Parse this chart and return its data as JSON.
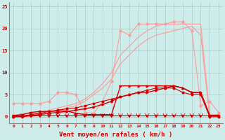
{
  "x": [
    0,
    1,
    2,
    3,
    4,
    5,
    6,
    7,
    8,
    9,
    10,
    11,
    12,
    13,
    14,
    15,
    16,
    17,
    18,
    19,
    20,
    21,
    22,
    23
  ],
  "line_pink_jagged": [
    3.0,
    3.0,
    3.0,
    3.0,
    3.5,
    5.5,
    5.5,
    5.0,
    1.0,
    0.8,
    3.5,
    8.0,
    19.5,
    18.5,
    21.0,
    21.0,
    21.0,
    21.0,
    21.5,
    21.5,
    19.5,
    2.5,
    3.5,
    1.0
  ],
  "line_pink_upper": [
    0.0,
    0.0,
    0.5,
    1.0,
    1.5,
    2.0,
    2.5,
    3.0,
    4.0,
    5.5,
    7.5,
    10.0,
    14.0,
    16.0,
    18.0,
    19.5,
    20.5,
    21.0,
    21.0,
    21.0,
    21.0,
    21.0,
    0.5,
    0.5
  ],
  "line_pink_lower": [
    0.0,
    0.0,
    0.0,
    0.5,
    1.0,
    1.5,
    2.0,
    2.5,
    3.5,
    5.0,
    6.5,
    8.5,
    12.0,
    14.0,
    16.0,
    17.5,
    18.5,
    19.0,
    19.5,
    20.0,
    20.5,
    18.5,
    0.0,
    0.0
  ],
  "line_dark_flat": [
    0.3,
    0.3,
    0.3,
    0.3,
    0.3,
    0.3,
    0.3,
    0.3,
    0.3,
    0.3,
    0.3,
    0.3,
    0.3,
    0.3,
    0.3,
    0.3,
    0.3,
    0.3,
    0.3,
    0.3,
    0.3,
    0.3,
    0.3,
    0.3
  ],
  "line_dark_step": [
    0.3,
    0.5,
    1.0,
    1.2,
    1.2,
    1.3,
    1.3,
    0.8,
    0.5,
    0.5,
    0.5,
    0.5,
    7.0,
    7.0,
    7.0,
    7.0,
    7.0,
    7.0,
    7.0,
    6.5,
    5.5,
    5.5,
    0.3,
    0.3
  ],
  "line_dark_ramp": [
    0.0,
    0.0,
    0.3,
    0.5,
    0.8,
    1.0,
    1.2,
    1.5,
    1.8,
    2.2,
    2.8,
    3.5,
    4.5,
    5.0,
    5.5,
    5.5,
    6.0,
    6.5,
    7.0,
    6.5,
    5.5,
    5.5,
    0.3,
    0.3
  ],
  "line_dark_grow": [
    0.0,
    0.2,
    0.5,
    0.8,
    1.2,
    1.5,
    1.8,
    2.0,
    2.5,
    3.0,
    3.5,
    4.0,
    4.5,
    5.0,
    5.5,
    6.0,
    6.5,
    6.5,
    6.5,
    5.5,
    5.0,
    5.0,
    0.0,
    0.0
  ],
  "bg_color": "#ceecea",
  "grid_color": "#aacccc",
  "color_dark_red": "#cc0000",
  "color_light_red": "#ff9999",
  "xlabel": "Vent moyen/en rafales ( km/h )",
  "yticks": [
    0,
    5,
    10,
    15,
    20,
    25
  ],
  "xticks": [
    0,
    1,
    2,
    3,
    4,
    5,
    6,
    7,
    8,
    9,
    10,
    11,
    12,
    13,
    14,
    15,
    16,
    17,
    18,
    19,
    20,
    21,
    22,
    23
  ]
}
